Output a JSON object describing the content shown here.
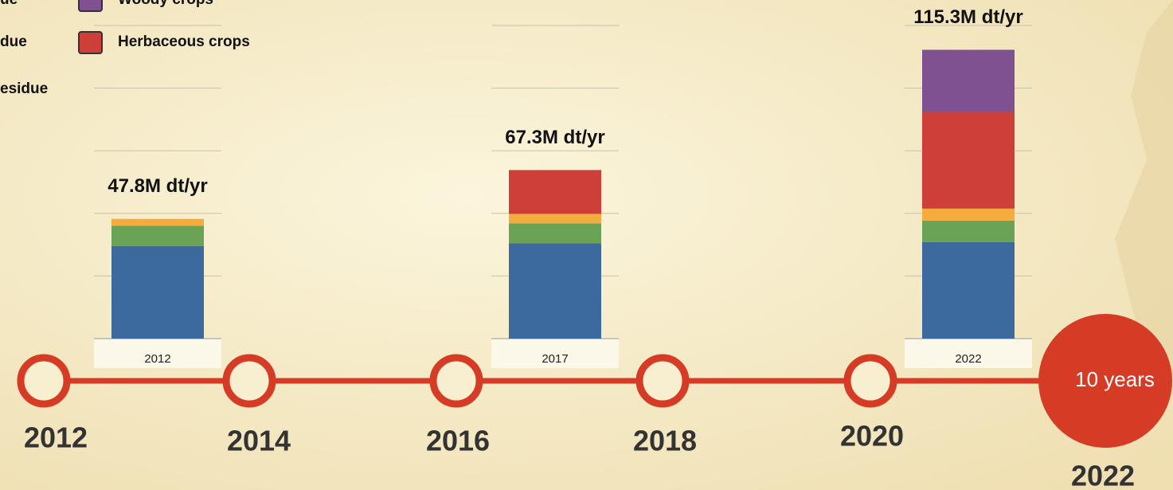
{
  "chart_data": {
    "type": "stacked-bar",
    "categories": [
      "2012",
      "2017",
      "2022"
    ],
    "series": [
      {
        "name": "ue",
        "color": "#3d6a9e",
        "values": [
          37,
          38,
          38.5
        ]
      },
      {
        "name": "due",
        "color": "#6aa355",
        "values": [
          8,
          8,
          8.6
        ]
      },
      {
        "name": "esidue",
        "color": "#f4ad3d",
        "values": [
          2.8,
          3.8,
          4.8
        ]
      },
      {
        "name": "Herbaceous crops",
        "color": "#cf3f3a",
        "values": [
          0,
          17.5,
          38.6
        ]
      },
      {
        "name": "Woody crops",
        "color": "#7f5190",
        "values": [
          0,
          0,
          24.8
        ]
      }
    ],
    "totals": [
      47.8,
      67.3,
      115.3
    ],
    "total_labels": [
      "47.8M dt/yr",
      "67.3M dt/yr",
      "115.3M dt/yr"
    ],
    "ylim": [
      0,
      125
    ],
    "yticks": [
      0,
      25,
      50,
      75,
      100,
      125
    ],
    "grid": true
  },
  "timeline": {
    "years": [
      "2012",
      "2014",
      "2016",
      "2018",
      "2020",
      "2022"
    ],
    "badge": "10 years"
  }
}
